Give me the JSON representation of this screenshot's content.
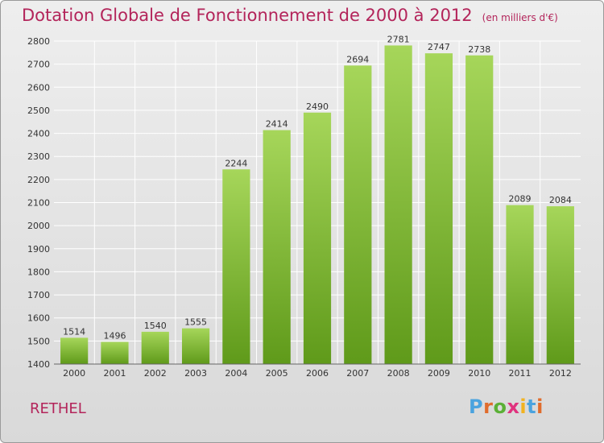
{
  "title": "Dotation Globale de Fonctionnement de 2000 à 2012",
  "unit": "(en milliers d'€)",
  "commune": "RETHEL",
  "logo": {
    "text": "Proxiti",
    "colors": [
      "#4aa3df",
      "#e06c2c",
      "#5bb036",
      "#e0337e",
      "#f2b321",
      "#4aa3df",
      "#e06c2c"
    ]
  },
  "chart_data": {
    "type": "bar",
    "title": "Dotation Globale de Fonctionnement de 2000 à 2012",
    "unit": "(en milliers d'€)",
    "categories": [
      "2000",
      "2001",
      "2002",
      "2003",
      "2004",
      "2005",
      "2006",
      "2007",
      "2008",
      "2009",
      "2010",
      "2011",
      "2012"
    ],
    "values": [
      1514,
      1496,
      1540,
      1555,
      2244,
      2414,
      2490,
      2694,
      2781,
      2747,
      2738,
      2089,
      2084
    ],
    "ylim": [
      1400,
      2800
    ],
    "yticks": [
      1400,
      1500,
      1600,
      1700,
      1800,
      1900,
      2000,
      2100,
      2200,
      2300,
      2400,
      2500,
      2600,
      2700,
      2800
    ],
    "grid": true,
    "bar_color_top": "#a6d65a",
    "bar_color_bottom": "#5f9a1a",
    "grid_color": "#ffffff"
  }
}
